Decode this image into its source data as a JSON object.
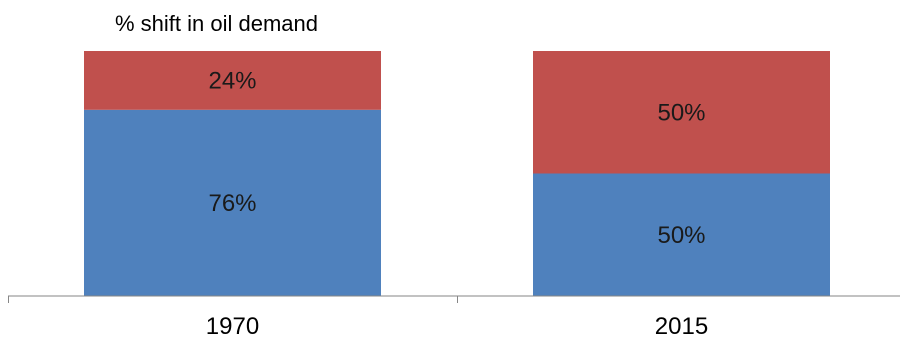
{
  "chart_data": {
    "type": "bar",
    "stacked": true,
    "title": "% shift in oil demand",
    "categories": [
      "1970",
      "2015"
    ],
    "series": [
      {
        "values": [
          76,
          50
        ],
        "labels": [
          "76%",
          "50%"
        ],
        "color": "#4f81bd"
      },
      {
        "values": [
          24,
          50
        ],
        "labels": [
          "24%",
          "50%"
        ],
        "color": "#c0504d"
      }
    ],
    "ylim": [
      0,
      100
    ],
    "grid": false,
    "legend": "none"
  }
}
